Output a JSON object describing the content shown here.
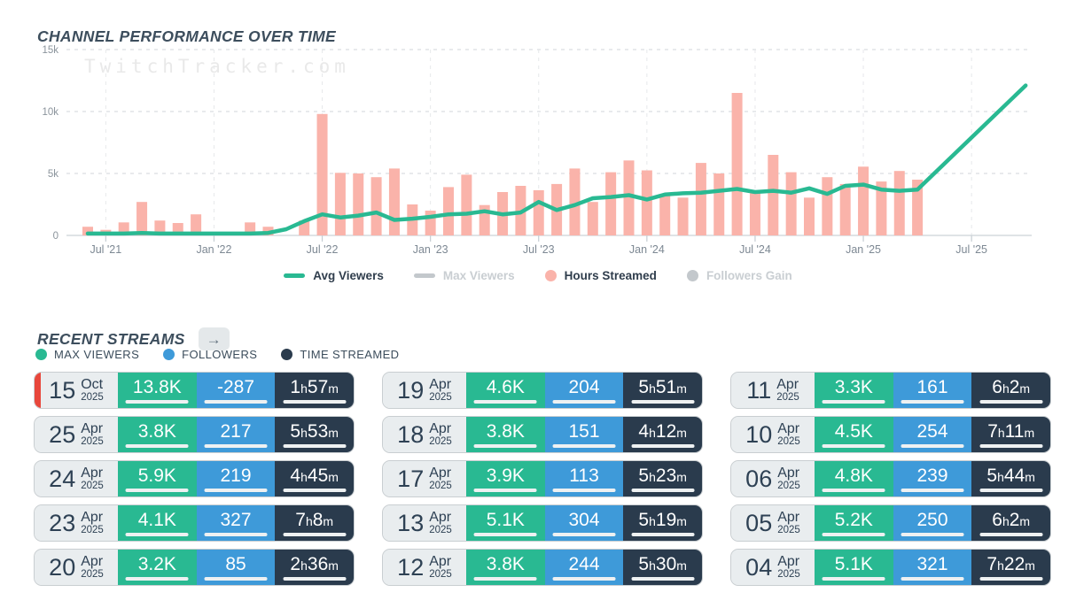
{
  "chart": {
    "title": "CHANNEL PERFORMANCE OVER TIME",
    "watermark": "TwitchTracker.com",
    "legend": [
      {
        "label": "Avg Viewers",
        "swatch": "line",
        "color": "#29b992",
        "active": true
      },
      {
        "label": "Max Viewers",
        "swatch": "line",
        "color": "#c3c8cc",
        "active": false
      },
      {
        "label": "Hours Streamed",
        "swatch": "dot",
        "color": "#fab3aa",
        "active": true
      },
      {
        "label": "Followers Gain",
        "swatch": "dot",
        "color": "#c3c8cc",
        "active": false
      }
    ]
  },
  "chart_data": {
    "type": "bar+line",
    "title": "CHANNEL PERFORMANCE OVER TIME",
    "ylim": [
      0,
      15000
    ],
    "grid": true,
    "x_ticks": [
      [
        "Jul '21",
        "2021-07"
      ],
      [
        "Jan '22",
        "2022-01"
      ],
      [
        "Jul '22",
        "2022-07"
      ],
      [
        "Jan '23",
        "2023-01"
      ],
      [
        "Jul '23",
        "2023-07"
      ],
      [
        "Jan '24",
        "2024-01"
      ],
      [
        "Jul '24",
        "2024-07"
      ],
      [
        "Jan '25",
        "2025-01"
      ],
      [
        "Jul '25",
        "2025-07"
      ]
    ],
    "y_ticks": [
      [
        "0",
        0
      ],
      [
        "5k",
        5000
      ],
      [
        "10k",
        10000
      ],
      [
        "15k",
        15000
      ]
    ],
    "hidden_series": [
      "Max Viewers",
      "Followers Gain"
    ],
    "series": [
      {
        "name": "Hours Streamed",
        "type": "bar",
        "color": "#fab3aa",
        "points": [
          [
            "2021-06",
            700
          ],
          [
            "2021-07",
            450
          ],
          [
            "2021-08",
            1050
          ],
          [
            "2021-09",
            2700
          ],
          [
            "2021-10",
            1200
          ],
          [
            "2021-11",
            1000
          ],
          [
            "2021-12",
            1700
          ],
          [
            "2022-03",
            1050
          ],
          [
            "2022-04",
            700
          ],
          [
            "2022-06",
            1200
          ],
          [
            "2022-07",
            9800
          ],
          [
            "2022-08",
            5050
          ],
          [
            "2022-09",
            5000
          ],
          [
            "2022-10",
            4700
          ],
          [
            "2022-11",
            5400
          ],
          [
            "2022-12",
            2500
          ],
          [
            "2023-01",
            2000
          ],
          [
            "2023-02",
            3900
          ],
          [
            "2023-03",
            4900
          ],
          [
            "2023-04",
            2450
          ],
          [
            "2023-05",
            3500
          ],
          [
            "2023-06",
            4000
          ],
          [
            "2023-07",
            3650
          ],
          [
            "2023-08",
            4150
          ],
          [
            "2023-09",
            5400
          ],
          [
            "2023-10",
            2700
          ],
          [
            "2023-11",
            5100
          ],
          [
            "2023-12",
            6050
          ],
          [
            "2024-01",
            5250
          ],
          [
            "2024-02",
            3300
          ],
          [
            "2024-03",
            3050
          ],
          [
            "2024-04",
            5850
          ],
          [
            "2024-05",
            5000
          ],
          [
            "2024-06",
            11500
          ],
          [
            "2024-07",
            3400
          ],
          [
            "2024-08",
            6500
          ],
          [
            "2024-09",
            5100
          ],
          [
            "2024-10",
            3050
          ],
          [
            "2024-11",
            4700
          ],
          [
            "2024-12",
            4150
          ],
          [
            "2025-01",
            5550
          ],
          [
            "2025-02",
            4350
          ],
          [
            "2025-03",
            5200
          ],
          [
            "2025-04",
            4500
          ]
        ]
      },
      {
        "name": "Avg Viewers",
        "type": "line",
        "color": "#29b992",
        "points": [
          [
            "2021-06",
            150
          ],
          [
            "2021-07",
            150
          ],
          [
            "2021-08",
            150
          ],
          [
            "2021-09",
            200
          ],
          [
            "2021-10",
            150
          ],
          [
            "2021-11",
            150
          ],
          [
            "2021-12",
            150
          ],
          [
            "2022-01",
            150
          ],
          [
            "2022-02",
            150
          ],
          [
            "2022-03",
            150
          ],
          [
            "2022-04",
            200
          ],
          [
            "2022-05",
            500
          ],
          [
            "2022-06",
            1150
          ],
          [
            "2022-07",
            1700
          ],
          [
            "2022-08",
            1450
          ],
          [
            "2022-09",
            1600
          ],
          [
            "2022-10",
            1850
          ],
          [
            "2022-11",
            1250
          ],
          [
            "2022-12",
            1350
          ],
          [
            "2023-01",
            1500
          ],
          [
            "2023-02",
            1700
          ],
          [
            "2023-03",
            1750
          ],
          [
            "2023-04",
            1950
          ],
          [
            "2023-05",
            1700
          ],
          [
            "2023-06",
            1850
          ],
          [
            "2023-07",
            2700
          ],
          [
            "2023-08",
            2050
          ],
          [
            "2023-09",
            2450
          ],
          [
            "2023-10",
            3000
          ],
          [
            "2023-11",
            3100
          ],
          [
            "2023-12",
            3250
          ],
          [
            "2024-01",
            2900
          ],
          [
            "2024-02",
            3300
          ],
          [
            "2024-03",
            3400
          ],
          [
            "2024-04",
            3450
          ],
          [
            "2024-05",
            3600
          ],
          [
            "2024-06",
            3750
          ],
          [
            "2024-07",
            3500
          ],
          [
            "2024-08",
            3600
          ],
          [
            "2024-09",
            3450
          ],
          [
            "2024-10",
            3800
          ],
          [
            "2024-11",
            3350
          ],
          [
            "2024-12",
            4000
          ],
          [
            "2025-01",
            4100
          ],
          [
            "2025-02",
            3700
          ],
          [
            "2025-03",
            3600
          ],
          [
            "2025-04",
            3700
          ],
          [
            "2025-10",
            12100
          ]
        ]
      }
    ]
  },
  "recent": {
    "title": "RECENT STREAMS",
    "arrow_glyph": "→",
    "legend": [
      {
        "label": "MAX VIEWERS",
        "color": "#29b992"
      },
      {
        "label": "FOLLOWERS",
        "color": "#3e9ad9"
      },
      {
        "label": "TIME STREAMED",
        "color": "#2a3b4d"
      }
    ],
    "streams": [
      {
        "day": "15",
        "month": "Oct",
        "year": "2025",
        "live": true,
        "max_viewers": "13.8K",
        "mv_pct": 100,
        "followers": "-287",
        "fol_pct": 88,
        "fol_negative": true,
        "time_h": "1",
        "time_m": "57",
        "time_pct": 40
      },
      {
        "day": "25",
        "month": "Apr",
        "year": "2025",
        "live": false,
        "max_viewers": "3.8K",
        "mv_pct": 28,
        "followers": "217",
        "fol_pct": 66,
        "fol_negative": false,
        "time_h": "5",
        "time_m": "53",
        "time_pct": 80
      },
      {
        "day": "24",
        "month": "Apr",
        "year": "2025",
        "live": false,
        "max_viewers": "5.9K",
        "mv_pct": 43,
        "followers": "219",
        "fol_pct": 67,
        "fol_negative": false,
        "time_h": "4",
        "time_m": "45",
        "time_pct": 64
      },
      {
        "day": "23",
        "month": "Apr",
        "year": "2025",
        "live": false,
        "max_viewers": "4.1K",
        "mv_pct": 30,
        "followers": "327",
        "fol_pct": 100,
        "fol_negative": false,
        "time_h": "7",
        "time_m": "8",
        "time_pct": 97
      },
      {
        "day": "20",
        "month": "Apr",
        "year": "2025",
        "live": false,
        "max_viewers": "3.2K",
        "mv_pct": 23,
        "followers": "85",
        "fol_pct": 26,
        "fol_negative": false,
        "time_h": "2",
        "time_m": "36",
        "time_pct": 35
      },
      {
        "day": "19",
        "month": "Apr",
        "year": "2025",
        "live": false,
        "max_viewers": "4.6K",
        "mv_pct": 33,
        "followers": "204",
        "fol_pct": 62,
        "fol_negative": false,
        "time_h": "5",
        "time_m": "51",
        "time_pct": 79
      },
      {
        "day": "18",
        "month": "Apr",
        "year": "2025",
        "live": false,
        "max_viewers": "3.8K",
        "mv_pct": 28,
        "followers": "151",
        "fol_pct": 46,
        "fol_negative": false,
        "time_h": "4",
        "time_m": "12",
        "time_pct": 57
      },
      {
        "day": "17",
        "month": "Apr",
        "year": "2025",
        "live": false,
        "max_viewers": "3.9K",
        "mv_pct": 28,
        "followers": "113",
        "fol_pct": 35,
        "fol_negative": false,
        "time_h": "5",
        "time_m": "23",
        "time_pct": 73
      },
      {
        "day": "13",
        "month": "Apr",
        "year": "2025",
        "live": false,
        "max_viewers": "5.1K",
        "mv_pct": 37,
        "followers": "304",
        "fol_pct": 93,
        "fol_negative": false,
        "time_h": "5",
        "time_m": "19",
        "time_pct": 72
      },
      {
        "day": "12",
        "month": "Apr",
        "year": "2025",
        "live": false,
        "max_viewers": "3.8K",
        "mv_pct": 28,
        "followers": "244",
        "fol_pct": 75,
        "fol_negative": false,
        "time_h": "5",
        "time_m": "30",
        "time_pct": 75
      },
      {
        "day": "11",
        "month": "Apr",
        "year": "2025",
        "live": false,
        "max_viewers": "3.3K",
        "mv_pct": 24,
        "followers": "161",
        "fol_pct": 49,
        "fol_negative": false,
        "time_h": "6",
        "time_m": "2",
        "time_pct": 82
      },
      {
        "day": "10",
        "month": "Apr",
        "year": "2025",
        "live": false,
        "max_viewers": "4.5K",
        "mv_pct": 33,
        "followers": "254",
        "fol_pct": 78,
        "fol_negative": false,
        "time_h": "7",
        "time_m": "11",
        "time_pct": 97
      },
      {
        "day": "06",
        "month": "Apr",
        "year": "2025",
        "live": false,
        "max_viewers": "4.8K",
        "mv_pct": 35,
        "followers": "239",
        "fol_pct": 73,
        "fol_negative": false,
        "time_h": "5",
        "time_m": "44",
        "time_pct": 78
      },
      {
        "day": "05",
        "month": "Apr",
        "year": "2025",
        "live": false,
        "max_viewers": "5.2K",
        "mv_pct": 38,
        "followers": "250",
        "fol_pct": 76,
        "fol_negative": false,
        "time_h": "6",
        "time_m": "2",
        "time_pct": 82
      },
      {
        "day": "04",
        "month": "Apr",
        "year": "2025",
        "live": false,
        "max_viewers": "5.1K",
        "mv_pct": 37,
        "followers": "321",
        "fol_pct": 98,
        "fol_negative": false,
        "time_h": "7",
        "time_m": "22",
        "time_pct": 100
      }
    ]
  }
}
